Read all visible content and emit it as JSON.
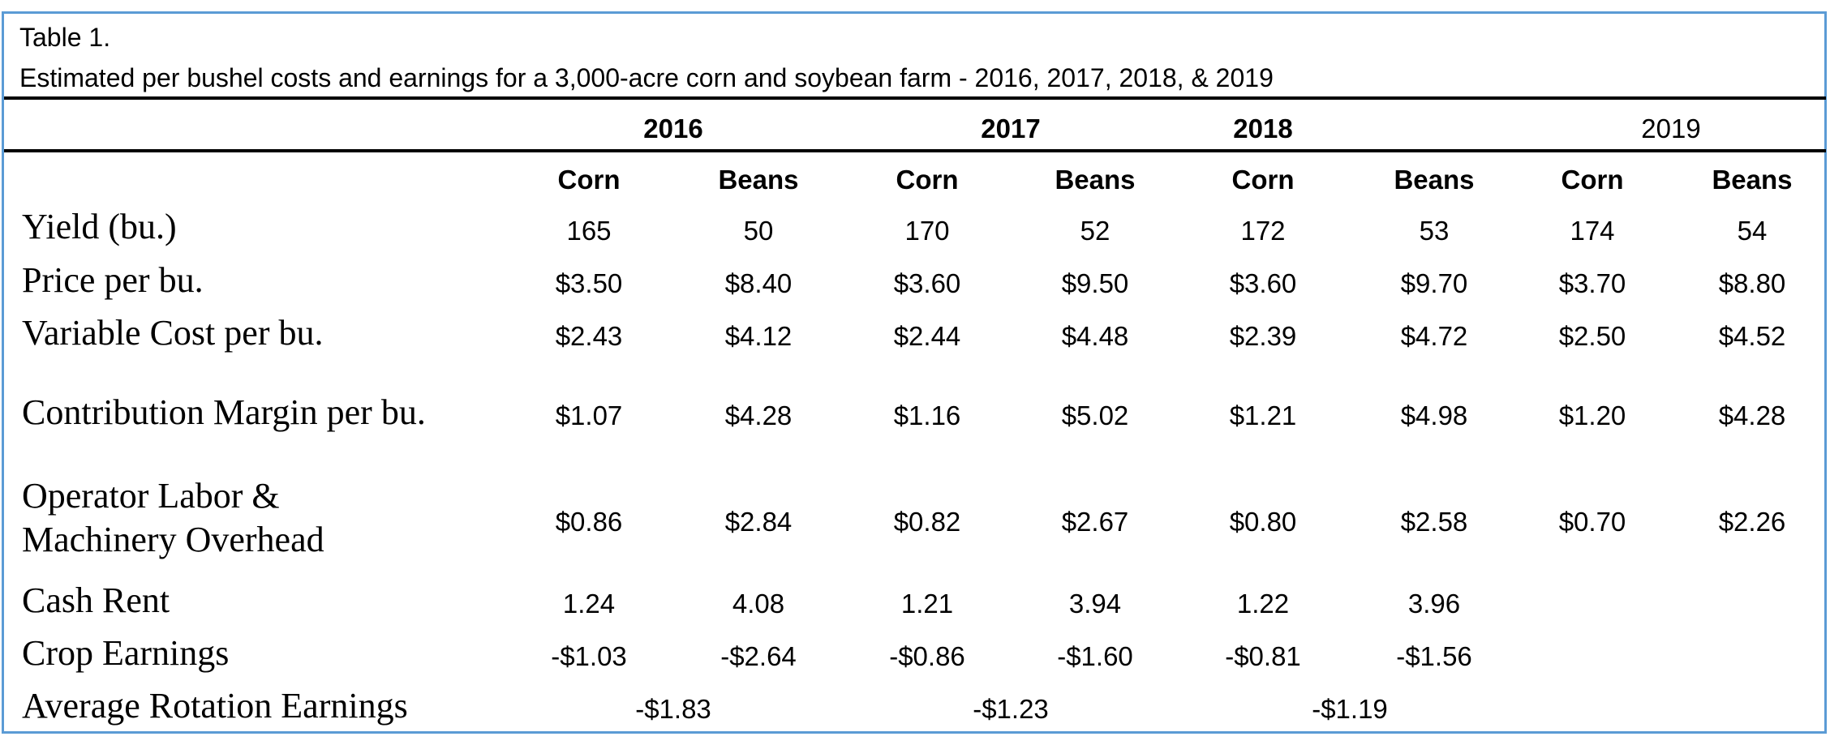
{
  "caption": {
    "line1": "Table 1.",
    "line2": "Estimated per bushel costs and earnings for a 3,000-acre corn and soybean farm - 2016, 2017, 2018, & 2019"
  },
  "years": [
    "2016",
    "2017",
    "2018",
    "2019"
  ],
  "crops": [
    "Corn",
    "Beans",
    "Corn",
    "Beans",
    "Corn",
    "Beans",
    "Corn",
    "Beans"
  ],
  "rows": [
    {
      "label": "Yield (bu.)",
      "values": [
        "165",
        "50",
        "170",
        "52",
        "172",
        "53",
        "174",
        "54"
      ]
    },
    {
      "label": "Price per bu.",
      "values": [
        "$3.50",
        "$8.40",
        "$3.60",
        "$9.50",
        "$3.60",
        "$9.70",
        "$3.70",
        "$8.80"
      ]
    },
    {
      "label": "Variable Cost per bu.",
      "values": [
        "$2.43",
        "$4.12",
        "$2.44",
        "$4.48",
        "$2.39",
        "$4.72",
        "$2.50",
        "$4.52"
      ]
    },
    {
      "label": "Contribution Margin per bu.",
      "values": [
        "$1.07",
        "$4.28",
        "$1.16",
        "$5.02",
        "$1.21",
        "$4.98",
        "$1.20",
        "$4.28"
      ]
    },
    {
      "label_lines": [
        "Operator Labor &",
        "Machinery Overhead"
      ],
      "values": [
        "$0.86",
        "$2.84",
        "$0.82",
        "$2.67",
        "$0.80",
        "$2.58",
        "$0.70",
        "$2.26"
      ]
    },
    {
      "label": "Cash Rent",
      "values": [
        "1.24",
        "4.08",
        "1.21",
        "3.94",
        "1.22",
        "3.96",
        "",
        ""
      ]
    },
    {
      "label": "Crop Earnings",
      "values": [
        "-$1.03",
        "-$2.64",
        "-$0.86",
        "-$1.60",
        "-$0.81",
        "-$1.56",
        "",
        ""
      ]
    }
  ],
  "rotation": {
    "label": "Average Rotation Earnings",
    "values": [
      "-$1.83",
      "-$1.23",
      "-$1.19"
    ]
  },
  "colors": {
    "frame_border": "#5b9bd5",
    "rule": "#000000",
    "text": "#000000"
  }
}
